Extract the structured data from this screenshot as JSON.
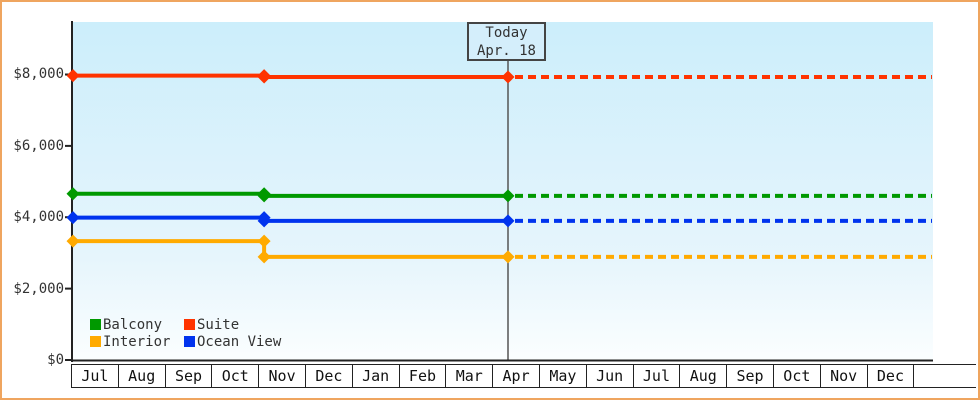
{
  "chart_data": {
    "type": "line",
    "title": "",
    "x_axis": {
      "months": [
        "Jul",
        "Aug",
        "Sep",
        "Oct",
        "Nov",
        "Dec",
        "Jan",
        "Feb",
        "Mar",
        "Apr",
        "May",
        "Jun",
        "Jul",
        "Aug",
        "Sep",
        "Oct",
        "Nov",
        "Dec"
      ],
      "trailing_blank_cell": true
    },
    "y_axis": {
      "tick_labels": [
        "$0",
        "$2,000",
        "$4,000",
        "$6,000",
        "$8,000"
      ],
      "tick_values": [
        0,
        2000,
        4000,
        6000,
        8000
      ],
      "range": [
        0,
        8800
      ],
      "grid": false
    },
    "today": {
      "label": [
        "Today",
        "Apr. 18"
      ],
      "month_index": 9.1
    },
    "series": [
      {
        "name": "Suite",
        "color": "#ff3300",
        "points": [
          {
            "month": "Jul",
            "month_index": 0,
            "value": 7970
          },
          {
            "month": "Nov",
            "month_index": 4,
            "value": 7930
          }
        ],
        "value_at_today": 7930,
        "projection": "dotted"
      },
      {
        "name": "Balcony",
        "color": "#009900",
        "points": [
          {
            "month": "Jul",
            "month_index": 0,
            "value": 4660
          },
          {
            "month": "Nov",
            "month_index": 4,
            "value": 4600
          }
        ],
        "value_at_today": 4600,
        "projection": "dotted"
      },
      {
        "name": "Ocean View",
        "color": "#0033ee",
        "points": [
          {
            "month": "Jul",
            "month_index": 0,
            "value": 3990
          },
          {
            "month": "Nov",
            "month_index": 4,
            "value": 3900
          }
        ],
        "value_at_today": 3900,
        "projection": "dotted"
      },
      {
        "name": "Interior",
        "color": "#ffaa00",
        "points": [
          {
            "month": "Jul",
            "month_index": 0,
            "value": 3330
          },
          {
            "month": "Nov",
            "month_index": 4,
            "value": 2890
          }
        ],
        "value_at_today": 2890,
        "projection": "dotted"
      }
    ],
    "legend": {
      "position": "bottom-left",
      "items": [
        {
          "label": "Balcony",
          "color": "#009900"
        },
        {
          "label": "Suite",
          "color": "#ff3300"
        },
        {
          "label": "Interior",
          "color": "#ffaa00"
        },
        {
          "label": "Ocean View",
          "color": "#0033ee"
        }
      ]
    },
    "colors": {
      "frame_border": "#efa55f",
      "plot_bg_top": "#cceefb",
      "plot_bg_bottom": "#fbfeff",
      "axis": "#222222",
      "today_line": "#555555",
      "today_box_bg": "#d4eefb",
      "today_box_border": "#444444"
    }
  }
}
